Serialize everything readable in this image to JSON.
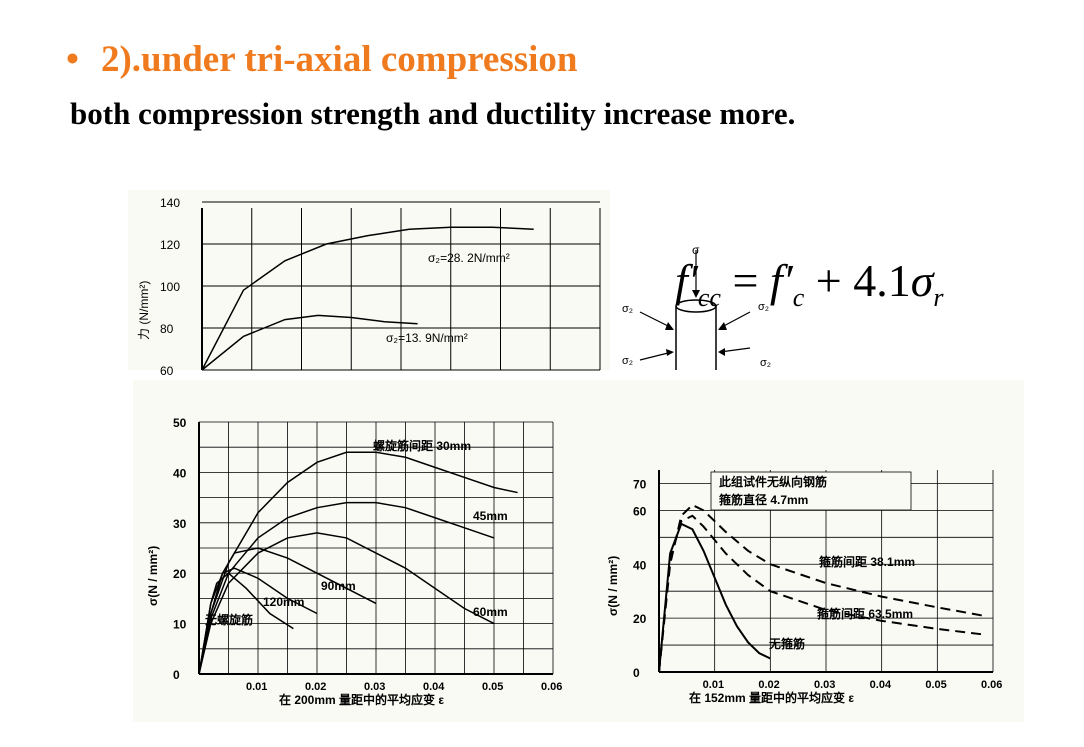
{
  "header": {
    "bullet": "•",
    "title": "2).under tri-axial compression",
    "subtitle": "both compression strength and ductility increase more."
  },
  "formula": {
    "lhs": "f′",
    "lhs_sub": "cc",
    "eq": "=",
    "rhs1": "f′",
    "rhs1_sub": "c",
    "plus": "+ 4.1",
    "sigma": "σ",
    "sigma_sub": "r"
  },
  "colors": {
    "accent": "#f07a1e",
    "text": "#000000",
    "scan_bg": "#fafaf5"
  },
  "chart_data": [
    {
      "type": "line",
      "ylabel": "力 (N/mm²)",
      "ylim": [
        60,
        140
      ],
      "yticks": [
        "140",
        "120",
        "100",
        "80",
        "60"
      ],
      "curve_labels": [
        "σ₂=28. 2N/mm²",
        "σ₂=13. 9N/mm²"
      ],
      "specimen_labels": [
        "σ",
        "σ₂",
        "σ₂",
        "σ₂",
        "σ₂"
      ],
      "series": [
        {
          "name": "σ₂=28. 2N/mm²",
          "x": [
            0.0,
            0.005,
            0.01,
            0.015,
            0.02,
            0.025,
            0.03,
            0.035,
            0.04
          ],
          "y": [
            60,
            98,
            112,
            120,
            124,
            127,
            128,
            128,
            127
          ]
        },
        {
          "name": "σ₂=13. 9N/mm²",
          "x": [
            0.0,
            0.005,
            0.01,
            0.014,
            0.018,
            0.022,
            0.026
          ],
          "y": [
            60,
            76,
            84,
            86,
            85,
            83,
            82
          ]
        }
      ]
    },
    {
      "type": "line",
      "ylabel": "σ(N / mm²)",
      "xlabel": "在 200mm 量距中的平均应变 ε",
      "xticks": [
        "0",
        "0.01",
        "0.02",
        "0.03",
        "0.04",
        "0.05",
        "0.06"
      ],
      "yticks": [
        "0",
        "10",
        "20",
        "30",
        "40",
        "50"
      ],
      "xlim": [
        0,
        0.06
      ],
      "ylim": [
        0,
        50
      ],
      "curve_labels": [
        "螺旋筋间距 30mm",
        "45mm",
        "90mm",
        "120mm",
        "60mm",
        "无螺旋筋"
      ],
      "series": [
        {
          "name": "螺旋筋间距 30mm",
          "x": [
            0,
            0.002,
            0.005,
            0.01,
            0.015,
            0.02,
            0.025,
            0.03,
            0.035,
            0.04,
            0.045,
            0.05,
            0.054
          ],
          "y": [
            0,
            12,
            22,
            32,
            38,
            42,
            44,
            44,
            43,
            41,
            39,
            37,
            36
          ]
        },
        {
          "name": "45mm",
          "x": [
            0,
            0.002,
            0.005,
            0.01,
            0.015,
            0.02,
            0.025,
            0.03,
            0.035,
            0.04,
            0.045,
            0.05
          ],
          "y": [
            0,
            11,
            20,
            27,
            31,
            33,
            34,
            34,
            33,
            31,
            29,
            27
          ]
        },
        {
          "name": "60mm",
          "x": [
            0,
            0.002,
            0.005,
            0.01,
            0.015,
            0.02,
            0.025,
            0.03,
            0.035,
            0.04,
            0.045,
            0.05
          ],
          "y": [
            0,
            10,
            18,
            24,
            27,
            28,
            27,
            24,
            21,
            17,
            13,
            10
          ]
        },
        {
          "name": "90mm",
          "x": [
            0,
            0.002,
            0.004,
            0.006,
            0.01,
            0.015,
            0.02,
            0.025,
            0.03
          ],
          "y": [
            0,
            12,
            20,
            24,
            25,
            23,
            20,
            17,
            14
          ]
        },
        {
          "name": "120mm",
          "x": [
            0,
            0.002,
            0.004,
            0.006,
            0.01,
            0.015,
            0.02
          ],
          "y": [
            0,
            14,
            20,
            21,
            19,
            15,
            12
          ]
        },
        {
          "name": "无螺旋筋",
          "x": [
            0,
            0.002,
            0.003,
            0.005,
            0.008,
            0.012,
            0.016
          ],
          "y": [
            0,
            14,
            18,
            20,
            17,
            12,
            9
          ]
        }
      ]
    },
    {
      "type": "line",
      "ylabel": "σ(N / mm²)",
      "xlabel": "在 152mm 量距中的平均应变 ε",
      "xticks": [
        "0",
        "0.01",
        "0.02",
        "0.03",
        "0.04",
        "0.05",
        "0.06"
      ],
      "yticks": [
        "0",
        "20",
        "40",
        "60",
        "70"
      ],
      "xlim": [
        0,
        0.06
      ],
      "ylim": [
        0,
        75
      ],
      "annotation": [
        "此组试件无纵向钢筋",
        "箍筋直径 4.7mm"
      ],
      "curve_labels": [
        "箍筋间距 38.1mm",
        "箍筋间距 63.5mm",
        "无箍筋"
      ],
      "series": [
        {
          "name": "箍筋间距 38.1mm",
          "style": "dashed",
          "x": [
            0,
            0.002,
            0.004,
            0.006,
            0.008,
            0.012,
            0.016,
            0.02,
            0.03,
            0.04,
            0.05,
            0.058
          ],
          "y": [
            0,
            40,
            58,
            62,
            60,
            52,
            45,
            40,
            33,
            28,
            24,
            21
          ]
        },
        {
          "name": "箍筋间距 63.5mm",
          "style": "dashed",
          "x": [
            0,
            0.002,
            0.004,
            0.006,
            0.008,
            0.012,
            0.016,
            0.02,
            0.03,
            0.04,
            0.05,
            0.058
          ],
          "y": [
            0,
            42,
            56,
            58,
            54,
            44,
            36,
            30,
            23,
            19,
            16,
            14
          ]
        },
        {
          "name": "无箍筋",
          "style": "solid",
          "x": [
            0,
            0.002,
            0.004,
            0.006,
            0.008,
            0.01,
            0.012,
            0.014,
            0.016,
            0.018,
            0.02
          ],
          "y": [
            0,
            44,
            55,
            53,
            45,
            35,
            25,
            17,
            11,
            7,
            5
          ]
        }
      ]
    }
  ]
}
